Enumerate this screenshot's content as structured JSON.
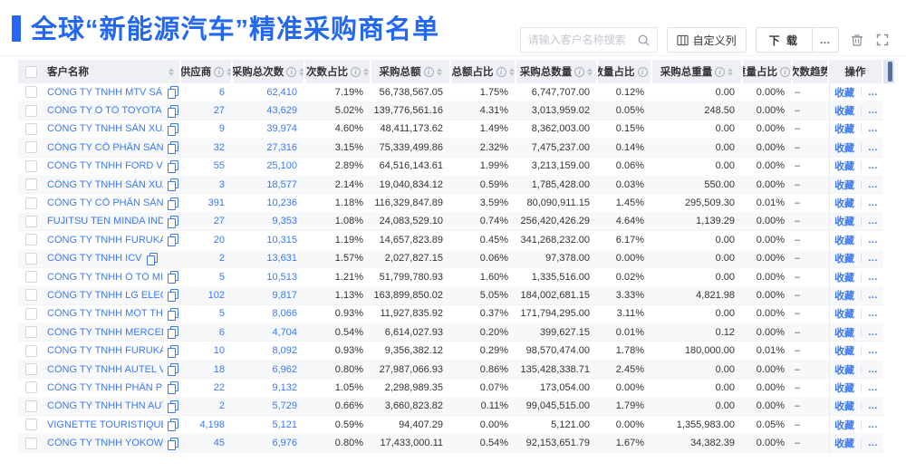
{
  "page": {
    "title": "全球“新能源汽车”精准采购商名单"
  },
  "toolbar": {
    "search_placeholder": "请输入客户名称搜索",
    "customize_columns": "自定义列",
    "download": "下 载",
    "more": "…"
  },
  "colors": {
    "accent": "#2468f2",
    "link": "#3b78f5",
    "header_bg": "#eef0f6"
  },
  "table": {
    "columns": [
      {
        "key": "name",
        "label": "客户名称",
        "info": false,
        "sort": true
      },
      {
        "key": "supplier",
        "label": "供应商",
        "info": true,
        "sort": true
      },
      {
        "key": "times",
        "label": "采购总次数",
        "info": true,
        "sort": true
      },
      {
        "key": "times_pct",
        "label": "次数占比",
        "info": true,
        "sort": true
      },
      {
        "key": "amount",
        "label": "采购总额",
        "info": true,
        "sort": true
      },
      {
        "key": "amount_pct",
        "label": "总额占比",
        "info": true,
        "sort": true
      },
      {
        "key": "qty",
        "label": "采购总数量",
        "info": true,
        "sort": true
      },
      {
        "key": "qty_pct",
        "label": "数量占比",
        "info": true,
        "sort": true
      },
      {
        "key": "weight",
        "label": "采购总重量",
        "info": true,
        "sort": true
      },
      {
        "key": "weight_pct",
        "label": "重量占比",
        "info": true,
        "sort": true
      },
      {
        "key": "trend",
        "label": "次数趋势",
        "info": false,
        "sort": false
      },
      {
        "key": "actions",
        "label": "操作",
        "info": false,
        "sort": false
      }
    ],
    "actions": {
      "favorite": "收藏",
      "more": "…"
    },
    "rows": [
      {
        "name": "CÔNG TY TNHH MTV SẢN XUẤ...",
        "supplier": "6",
        "times": "62,410",
        "times_pct": "7.19%",
        "amount": "56,738,567.05",
        "amount_pct": "1.75%",
        "qty": "6,747,707.00",
        "qty_pct": "0.12%",
        "weight": "0.00",
        "weight_pct": "0.00%",
        "trend": "–"
      },
      {
        "name": "CÔNG TY Ô TÔ TOYOTA VIỆT ...",
        "supplier": "27",
        "times": "43,629",
        "times_pct": "5.02%",
        "amount": "139,776,561.16",
        "amount_pct": "4.31%",
        "qty": "3,013,959.02",
        "qty_pct": "0.05%",
        "weight": "248.50",
        "weight_pct": "0.00%",
        "trend": "–"
      },
      {
        "name": "CÔNG TY TNHH SẢN XUẤT VÀ ...",
        "supplier": "9",
        "times": "39,974",
        "times_pct": "4.60%",
        "amount": "48,411,173.62",
        "amount_pct": "1.49%",
        "qty": "8,362,003.00",
        "qty_pct": "0.15%",
        "weight": "0.00",
        "weight_pct": "0.00%",
        "trend": "–"
      },
      {
        "name": "CÔNG TY CỔ PHẦN SẢN XUẤT...",
        "supplier": "32",
        "times": "27,316",
        "times_pct": "3.15%",
        "amount": "75,339,499.86",
        "amount_pct": "2.32%",
        "qty": "7,475,237.00",
        "qty_pct": "0.14%",
        "weight": "0.00",
        "weight_pct": "0.00%",
        "trend": "–"
      },
      {
        "name": "CÔNG TY TNHH FORD VIỆT NAM",
        "supplier": "55",
        "times": "25,100",
        "times_pct": "2.89%",
        "amount": "64,516,143.61",
        "amount_pct": "1.99%",
        "qty": "3,213,159.00",
        "qty_pct": "0.06%",
        "weight": "0.00",
        "weight_pct": "0.00%",
        "trend": "–"
      },
      {
        "name": "CÔNG TY TNHH SẢN XUẤT VÀ ...",
        "supplier": "3",
        "times": "18,577",
        "times_pct": "2.14%",
        "amount": "19,040,834.12",
        "amount_pct": "0.59%",
        "qty": "1,785,428.00",
        "qty_pct": "0.03%",
        "weight": "550.00",
        "weight_pct": "0.00%",
        "trend": "–"
      },
      {
        "name": "CÔNG TY CỔ PHẦN SẢN XUẤT...",
        "supplier": "391",
        "times": "10,236",
        "times_pct": "1.18%",
        "amount": "116,329,847.89",
        "amount_pct": "3.59%",
        "qty": "80,090,911.15",
        "qty_pct": "1.45%",
        "weight": "295,509.30",
        "weight_pct": "0.01%",
        "trend": "–"
      },
      {
        "name": "FUJITSU TEN MINDA INDIA PVT...",
        "supplier": "27",
        "times": "9,353",
        "times_pct": "1.08%",
        "amount": "24,083,529.10",
        "amount_pct": "0.74%",
        "qty": "256,420,426.29",
        "qty_pct": "4.64%",
        "weight": "1,139.29",
        "weight_pct": "0.00%",
        "trend": "–"
      },
      {
        "name": "CÔNG TY TNHH FURUKAWA A...",
        "supplier": "20",
        "times": "10,315",
        "times_pct": "1.19%",
        "amount": "14,657,823.89",
        "amount_pct": "0.45%",
        "qty": "341,268,232.00",
        "qty_pct": "6.17%",
        "weight": "0.00",
        "weight_pct": "0.00%",
        "trend": "–"
      },
      {
        "name": "CÔNG TY TNHH ICV",
        "supplier": "2",
        "times": "13,631",
        "times_pct": "1.57%",
        "amount": "2,027,827.15",
        "amount_pct": "0.06%",
        "qty": "97,378.00",
        "qty_pct": "0.00%",
        "weight": "0.00",
        "weight_pct": "0.00%",
        "trend": "–"
      },
      {
        "name": "CÔNG TY TNHH Ô TÔ MITSUBI...",
        "supplier": "5",
        "times": "10,513",
        "times_pct": "1.21%",
        "amount": "51,799,780.93",
        "amount_pct": "1.60%",
        "qty": "1,335,516.00",
        "qty_pct": "0.02%",
        "weight": "0.00",
        "weight_pct": "0.00%",
        "trend": "–"
      },
      {
        "name": "CÔNG TY TNHH LG ELECTRON...",
        "supplier": "102",
        "times": "9,817",
        "times_pct": "1.13%",
        "amount": "163,899,850.02",
        "amount_pct": "5.05%",
        "qty": "184,002,681.15",
        "qty_pct": "3.33%",
        "weight": "4,821.98",
        "weight_pct": "0.00%",
        "trend": "–"
      },
      {
        "name": "CÔNG TY TNHH MỘT THÀNH V...",
        "supplier": "5",
        "times": "8,066",
        "times_pct": "0.93%",
        "amount": "11,927,835.92",
        "amount_pct": "0.37%",
        "qty": "171,794,295.00",
        "qty_pct": "3.11%",
        "weight": "0.00",
        "weight_pct": "0.00%",
        "trend": "–"
      },
      {
        "name": "CÔNG TY TNHH MERCEDES–B...",
        "supplier": "6",
        "times": "4,704",
        "times_pct": "0.54%",
        "amount": "6,614,027.93",
        "amount_pct": "0.20%",
        "qty": "399,627.15",
        "qty_pct": "0.01%",
        "weight": "0.12",
        "weight_pct": "0.00%",
        "trend": "–"
      },
      {
        "name": "CÔNG TY TNHH FURUKAWA A...",
        "supplier": "10",
        "times": "8,092",
        "times_pct": "0.93%",
        "amount": "9,356,382.12",
        "amount_pct": "0.29%",
        "qty": "98,570,474.00",
        "qty_pct": "1.78%",
        "weight": "180,000.00",
        "weight_pct": "0.01%",
        "trend": "–"
      },
      {
        "name": "CÔNG TY TNHH AUTEL VIỆT N...",
        "supplier": "18",
        "times": "6,962",
        "times_pct": "0.80%",
        "amount": "27,987,066.93",
        "amount_pct": "0.86%",
        "qty": "135,428,338.71",
        "qty_pct": "2.45%",
        "weight": "0.00",
        "weight_pct": "0.00%",
        "trend": "–"
      },
      {
        "name": "CÔNG TY TNHH PHÂN PHỐI T...",
        "supplier": "22",
        "times": "9,132",
        "times_pct": "1.05%",
        "amount": "2,298,989.35",
        "amount_pct": "0.07%",
        "qty": "173,054.00",
        "qty_pct": "0.00%",
        "weight": "0.00",
        "weight_pct": "0.00%",
        "trend": "–"
      },
      {
        "name": "CÔNG TY TNHH THN AUTOPAR...",
        "supplier": "2",
        "times": "5,729",
        "times_pct": "0.66%",
        "amount": "3,660,823.82",
        "amount_pct": "0.11%",
        "qty": "99,045,515.00",
        "qty_pct": "1.79%",
        "weight": "0.00",
        "weight_pct": "0.00%",
        "trend": "–"
      },
      {
        "name": "VIGNETTE TOURISTIQUE G UNI...",
        "supplier": "4,198",
        "times": "5,121",
        "times_pct": "0.59%",
        "amount": "94,407.29",
        "amount_pct": "0.00%",
        "qty": "5,121.00",
        "qty_pct": "0.00%",
        "weight": "1,355,983.00",
        "weight_pct": "0.05%",
        "trend": "–"
      },
      {
        "name": "CÔNG TY TNHH YOKOWO VIỆT...",
        "supplier": "45",
        "times": "6,976",
        "times_pct": "0.80%",
        "amount": "17,433,000.11",
        "amount_pct": "0.54%",
        "qty": "92,153,651.79",
        "qty_pct": "1.67%",
        "weight": "34,382.39",
        "weight_pct": "0.00%",
        "trend": "–"
      }
    ]
  }
}
